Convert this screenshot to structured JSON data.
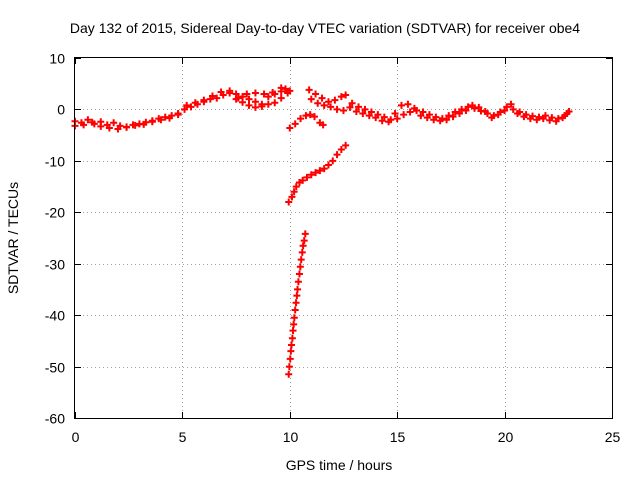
{
  "chart_data": {
    "type": "scatter",
    "title": "Day 132 of 2015, Sidereal Day-to-day VTEC variation (SDTVAR) for receiver obe4",
    "xlabel": "GPS time / hours",
    "ylabel": "SDTVAR / TECUs",
    "xlim": [
      0,
      25
    ],
    "ylim": [
      -60,
      10
    ],
    "xticks": [
      0,
      5,
      10,
      15,
      20,
      25
    ],
    "xtick_labels": [
      "0",
      "5",
      "10",
      "15",
      "20",
      "25"
    ],
    "yticks": [
      10,
      0,
      -10,
      -20,
      -30,
      -40,
      -50,
      -60
    ],
    "ytick_labels": [
      "10",
      "0",
      "-10",
      "-20",
      "-30",
      "-40",
      "-50",
      "-60"
    ],
    "grid": true,
    "marker": "plus",
    "color": "#ff0000",
    "series": [
      {
        "points": [
          [
            0.0,
            -2.3
          ],
          [
            0.3,
            -2.6
          ],
          [
            0.6,
            -2.0
          ],
          [
            0.9,
            -2.8
          ],
          [
            1.2,
            -2.4
          ],
          [
            1.5,
            -3.0
          ],
          [
            1.8,
            -2.6
          ],
          [
            2.1,
            -3.2
          ],
          [
            2.4,
            -3.5
          ],
          [
            2.7,
            -3.0
          ],
          [
            3.0,
            -2.8
          ],
          [
            3.3,
            -2.5
          ],
          [
            3.6,
            -2.2
          ],
          [
            3.9,
            -1.8
          ],
          [
            4.2,
            -1.5
          ],
          [
            4.5,
            -1.2
          ],
          [
            4.8,
            -0.8
          ],
          [
            5.1,
            0.0
          ],
          [
            5.4,
            0.5
          ],
          [
            5.7,
            1.0
          ],
          [
            6.0,
            1.5
          ],
          [
            6.3,
            2.0
          ],
          [
            6.6,
            2.2
          ],
          [
            6.9,
            2.8
          ],
          [
            7.2,
            3.2
          ],
          [
            7.5,
            3.0
          ],
          [
            7.8,
            2.5
          ],
          [
            8.1,
            2.0
          ],
          [
            8.4,
            1.5
          ],
          [
            8.7,
            1.0
          ],
          [
            9.0,
            2.5
          ],
          [
            9.3,
            3.0
          ],
          [
            9.6,
            3.5
          ],
          [
            9.9,
            3.2
          ],
          [
            10.0,
            3.6
          ],
          [
            0.0,
            -3.2
          ],
          [
            0.4,
            -3.0
          ],
          [
            0.8,
            -2.5
          ],
          [
            1.2,
            -3.3
          ],
          [
            1.6,
            -3.6
          ],
          [
            2.0,
            -3.8
          ],
          [
            2.4,
            -3.4
          ],
          [
            2.8,
            -3.1
          ],
          [
            3.2,
            -2.9
          ],
          [
            3.6,
            -2.4
          ],
          [
            4.0,
            -2.0
          ],
          [
            4.4,
            -1.7
          ],
          [
            4.8,
            -1.0
          ],
          [
            5.2,
            0.8
          ],
          [
            5.6,
            1.3
          ],
          [
            6.0,
            1.8
          ],
          [
            6.4,
            2.6
          ],
          [
            6.8,
            3.4
          ],
          [
            7.2,
            3.6
          ],
          [
            7.6,
            2.2
          ],
          [
            8.0,
            3.0
          ],
          [
            8.4,
            3.2
          ],
          [
            8.8,
            3.0
          ],
          [
            9.2,
            3.3
          ],
          [
            9.6,
            4.2
          ],
          [
            7.5,
            2.0
          ],
          [
            7.8,
            1.4
          ],
          [
            8.1,
            0.8
          ],
          [
            8.4,
            0.4
          ],
          [
            8.7,
            0.6
          ],
          [
            9.0,
            1.0
          ],
          [
            9.3,
            1.3
          ],
          [
            9.6,
            2.2
          ],
          [
            9.8,
            4.0
          ]
        ]
      },
      {
        "points": [
          [
            10.9,
            3.8
          ],
          [
            11.2,
            3.0
          ],
          [
            11.5,
            2.2
          ],
          [
            11.8,
            1.5
          ],
          [
            12.1,
            1.8
          ],
          [
            12.4,
            2.5
          ],
          [
            12.6,
            2.8
          ],
          [
            12.9,
            1.2
          ],
          [
            13.2,
            0.5
          ],
          [
            13.5,
            0.0
          ],
          [
            13.8,
            -0.5
          ],
          [
            14.1,
            -1.0
          ],
          [
            14.4,
            -1.5
          ],
          [
            14.7,
            -2.0
          ],
          [
            15.0,
            -1.8
          ],
          [
            15.3,
            -1.0
          ],
          [
            15.6,
            -0.5
          ],
          [
            15.9,
            -0.2
          ],
          [
            16.2,
            -0.5
          ],
          [
            16.5,
            -1.0
          ],
          [
            16.8,
            -1.5
          ],
          [
            17.1,
            -1.8
          ],
          [
            17.4,
            -1.2
          ],
          [
            17.7,
            -0.5
          ],
          [
            18.0,
            0.0
          ],
          [
            18.3,
            0.5
          ],
          [
            18.6,
            0.2
          ],
          [
            18.9,
            -0.3
          ],
          [
            19.2,
            -0.8
          ],
          [
            19.5,
            -1.2
          ],
          [
            19.8,
            -0.5
          ],
          [
            20.1,
            0.5
          ],
          [
            20.4,
            0.0
          ],
          [
            20.7,
            -0.5
          ],
          [
            21.0,
            -1.0
          ],
          [
            21.3,
            -1.3
          ],
          [
            21.6,
            -1.5
          ],
          [
            21.9,
            -1.2
          ],
          [
            22.2,
            -1.6
          ],
          [
            22.5,
            -1.8
          ],
          [
            22.8,
            -1.2
          ],
          [
            23.0,
            -0.4
          ],
          [
            11.0,
            2.0
          ],
          [
            11.3,
            1.2
          ],
          [
            11.6,
            0.8
          ],
          [
            11.9,
            0.5
          ],
          [
            12.2,
            0.0
          ],
          [
            12.5,
            -0.2
          ],
          [
            12.8,
            0.4
          ],
          [
            13.1,
            -0.4
          ],
          [
            13.4,
            -0.8
          ],
          [
            13.7,
            -1.2
          ],
          [
            14.0,
            -1.6
          ],
          [
            14.3,
            -2.2
          ],
          [
            14.6,
            -2.4
          ],
          [
            14.9,
            -0.8
          ],
          [
            15.2,
            0.8
          ],
          [
            15.5,
            1.0
          ],
          [
            15.8,
            0.2
          ],
          [
            16.1,
            -1.2
          ],
          [
            16.4,
            -1.6
          ],
          [
            16.7,
            -2.0
          ],
          [
            17.0,
            -2.2
          ],
          [
            17.3,
            -2.0
          ],
          [
            17.6,
            -1.4
          ],
          [
            17.9,
            -0.8
          ],
          [
            18.2,
            -0.2
          ],
          [
            18.5,
            0.8
          ],
          [
            18.8,
            0.4
          ],
          [
            19.1,
            -0.4
          ],
          [
            19.4,
            -1.6
          ],
          [
            19.7,
            -1.0
          ],
          [
            20.0,
            -0.2
          ],
          [
            20.3,
            1.0
          ],
          [
            20.6,
            -0.8
          ],
          [
            20.9,
            -1.4
          ],
          [
            21.2,
            -1.8
          ],
          [
            21.5,
            -2.0
          ],
          [
            21.8,
            -1.8
          ],
          [
            22.1,
            -2.1
          ],
          [
            22.4,
            -2.3
          ],
          [
            22.7,
            -1.6
          ],
          [
            22.9,
            -0.8
          ]
        ]
      },
      {
        "points": [
          [
            10.0,
            -3.6
          ],
          [
            10.25,
            -2.8
          ],
          [
            10.5,
            -1.8
          ],
          [
            10.75,
            -1.2
          ],
          [
            10.95,
            -1.0
          ],
          [
            11.15,
            -1.4
          ],
          [
            11.4,
            -2.6
          ],
          [
            11.55,
            -3.0
          ]
        ]
      },
      {
        "points": [
          [
            9.95,
            -18.0
          ],
          [
            10.1,
            -17.0
          ],
          [
            10.2,
            -16.0
          ],
          [
            10.3,
            -15.0
          ],
          [
            10.45,
            -14.2
          ],
          [
            10.6,
            -13.8
          ],
          [
            10.8,
            -13.2
          ],
          [
            11.0,
            -12.7
          ],
          [
            11.2,
            -12.3
          ],
          [
            11.4,
            -11.9
          ],
          [
            11.6,
            -11.5
          ],
          [
            11.8,
            -10.8
          ],
          [
            12.0,
            -10.0
          ],
          [
            12.2,
            -8.8
          ],
          [
            12.4,
            -7.8
          ],
          [
            12.6,
            -7.0
          ]
        ]
      },
      {
        "points": [
          [
            9.95,
            -51.5
          ],
          [
            9.98,
            -50.0
          ],
          [
            10.02,
            -48.5
          ],
          [
            10.05,
            -47.0
          ],
          [
            10.08,
            -45.8
          ],
          [
            10.12,
            -44.5
          ],
          [
            10.15,
            -43.0
          ],
          [
            10.18,
            -41.8
          ],
          [
            10.21,
            -40.5
          ],
          [
            10.25,
            -39.0
          ],
          [
            10.29,
            -37.6
          ],
          [
            10.33,
            -36.2
          ],
          [
            10.36,
            -35.0
          ],
          [
            10.4,
            -33.5
          ],
          [
            10.45,
            -32.0
          ],
          [
            10.49,
            -30.6
          ],
          [
            10.53,
            -29.2
          ],
          [
            10.58,
            -27.8
          ],
          [
            10.62,
            -26.5
          ],
          [
            10.67,
            -25.5
          ],
          [
            10.72,
            -24.2
          ]
        ]
      }
    ]
  }
}
